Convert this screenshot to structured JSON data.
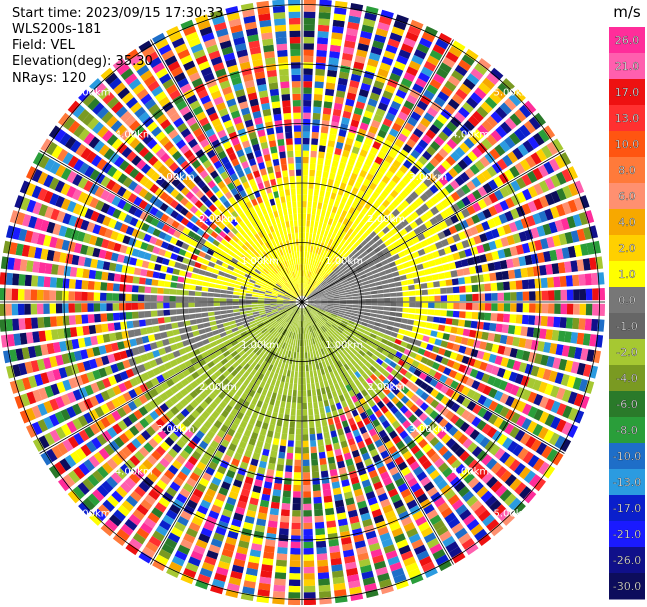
{
  "header": {
    "start_time": "Start time: 2023/09/15 17:30:33",
    "station": "WLS200s-181",
    "field": "Field: VEL",
    "elevation": "Elevation(deg): 35.30",
    "nrays": "NRays: 120"
  },
  "chart_data": {
    "type": "heatmap",
    "projection": "polar (PPI)",
    "title": "",
    "ring_labels": [
      "1.00km",
      "2.00km",
      "3.00km",
      "4.00km",
      "5.00km"
    ],
    "ring_ranges_km": [
      1,
      2,
      3,
      4,
      5
    ],
    "radial_spoke_step_deg": 30,
    "rays": 120,
    "colorbar": {
      "unit": "m/s",
      "levels": [
        "26.0",
        "21.0",
        "17.0",
        "13.0",
        "10.0",
        "8.0",
        "6.0",
        "4.0",
        "2.0",
        "1.0",
        "0.0",
        "-1.0",
        "-2.0",
        "-4.0",
        "-6.0",
        "-8.0",
        "-10.0",
        "-13.0",
        "-17.0",
        "-21.0",
        "-26.0",
        "-30.0"
      ],
      "colors": [
        "#ff2d9a",
        "#ff5fae",
        "#ee1111",
        "#ff3030",
        "#ff5511",
        "#ff7a3a",
        "#ff9070",
        "#f7a800",
        "#ffd000",
        "#ffff00",
        "#777777",
        "#666666",
        "#a6c832",
        "#7a9a22",
        "#2a7a2a",
        "#2a9e3a",
        "#1e6ec8",
        "#2b9be0",
        "#0a1fcc",
        "#1a1aff",
        "#10108a",
        "#0d0d5c"
      ]
    },
    "field": "VEL",
    "near_range_pattern": {
      "positive_sector": "north / north-east (yellow, ~2 m/s)",
      "near_zero_sector": "east (grey, ~0 m/s)",
      "negative_sector": "south / south-west (olive green, ~-2 m/s)"
    },
    "far_range": "noise (mixed random colours) beyond ~2.5 km"
  }
}
